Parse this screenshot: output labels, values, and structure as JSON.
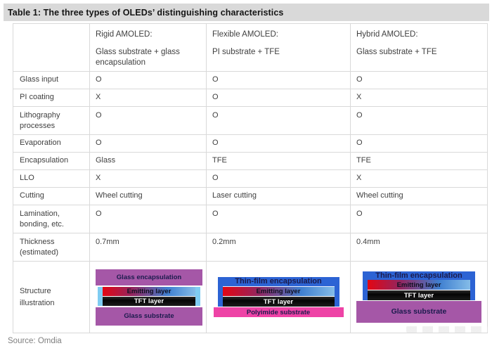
{
  "title": "Table 1: The three types of OLEDs’ distinguishing characteristics",
  "source": "Source: Omdia",
  "table": {
    "columns": [
      {
        "name": "Rigid AMOLED:",
        "subtitle": "Glass substrate + glass encapsulation"
      },
      {
        "name": "Flexible AMOLED:",
        "subtitle": "PI substrate + TFE"
      },
      {
        "name": "Hybrid AMOLED:",
        "subtitle": "Glass substrate + TFE"
      }
    ],
    "rows": [
      {
        "label": "Glass input",
        "values": [
          "O",
          "O",
          "O"
        ]
      },
      {
        "label": "PI coating",
        "values": [
          "X",
          "O",
          "X"
        ]
      },
      {
        "label": "Lithography processes",
        "values": [
          "O",
          "O",
          "O"
        ]
      },
      {
        "label": "Evaporation",
        "values": [
          "O",
          "O",
          "O"
        ]
      },
      {
        "label": "Encapsulation",
        "values": [
          "Glass",
          "TFE",
          "TFE"
        ]
      },
      {
        "label": "LLO",
        "values": [
          "X",
          "O",
          "X"
        ]
      },
      {
        "label": "Cutting",
        "values": [
          "Wheel cutting",
          "Laser cutting",
          "Wheel cutting"
        ]
      },
      {
        "label": "Lamination, bonding, etc.",
        "values": [
          "O",
          "O",
          "O"
        ]
      },
      {
        "label": "Thickness (estimated)",
        "values": [
          "0.7mm",
          "0.2mm",
          "0.4mm"
        ]
      }
    ],
    "structure_label": "Structure illustration"
  },
  "structures": {
    "rigid": {
      "layers": [
        "Glass encapsulation",
        "Emitting layer",
        "TFT layer",
        "Glass substrate"
      ]
    },
    "flexible": {
      "layers": [
        "Thin-film encapsulation",
        "Emitting layer",
        "TFT layer",
        "Polyimide substrate"
      ]
    },
    "hybrid": {
      "layers": [
        "Thin-film encapsulation",
        "Emitting layer",
        "TFT layer",
        "Glass substrate"
      ]
    }
  },
  "colors": {
    "title_bar_bg": "#d9d9d9",
    "border": "#d9d9d9",
    "text": "#3f3f3f",
    "purple": "#a557a7",
    "tfe_blue": "#2c63d4",
    "strip_blue": "#7fccf2",
    "pink": "#ee43a6",
    "emit_red": "#e30613",
    "emit_blue": "#3f7fd0",
    "layer_text": "#1b1b4d"
  }
}
